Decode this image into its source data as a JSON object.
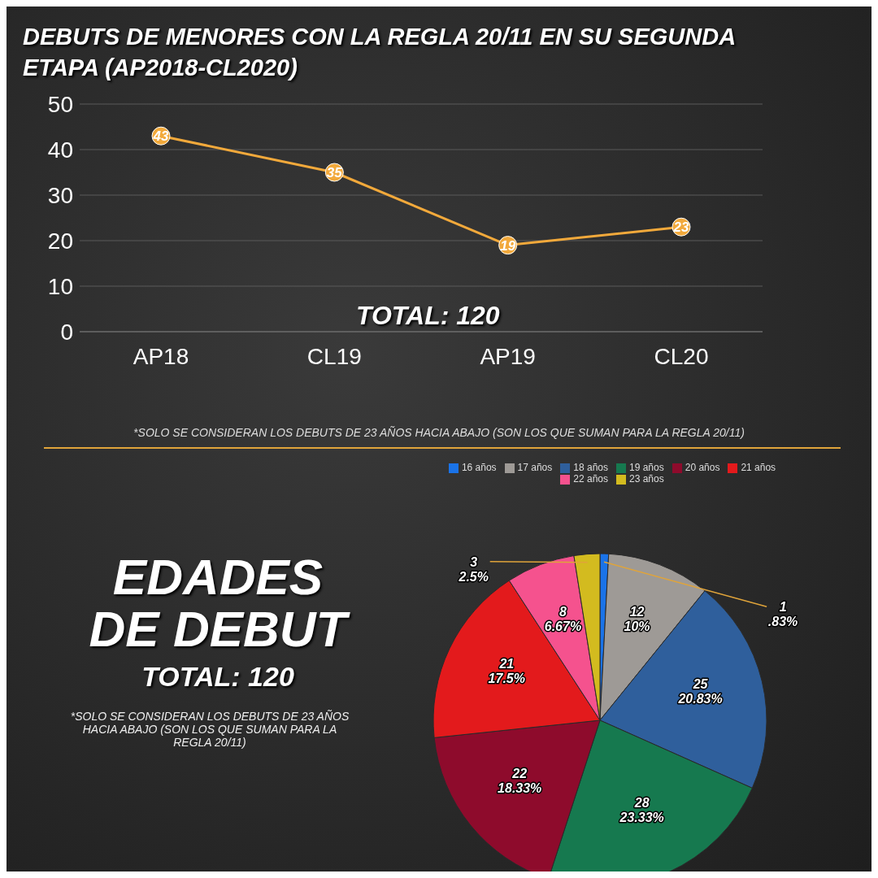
{
  "chart_data": [
    {
      "type": "line",
      "title": "DEBUTS DE MENORES CON LA REGLA 20/11 EN SU SEGUNDA ETAPA (AP2018-CL2020)",
      "categories": [
        "AP18",
        "CL19",
        "AP19",
        "CL20"
      ],
      "values": [
        43,
        35,
        19,
        23
      ],
      "color": "#f2a93b",
      "ylim": [
        0,
        50
      ],
      "yticks": [
        0,
        10,
        20,
        30,
        40,
        50
      ],
      "grid": "y",
      "marker": "circle",
      "data_labels": true,
      "annotations": [
        "TOTAL: 120",
        "*SOLO SE CONSIDERAN LOS DEBUTS DE 23 AÑOS HACIA ABAJO (SON LOS QUE SUMAN PARA LA REGLA 20/11)"
      ]
    },
    {
      "type": "pie",
      "title": "EDADES DE DEBUT",
      "subtitle": "TOTAL: 120",
      "categories": [
        "16 años",
        "17 años",
        "18 años",
        "19 años",
        "20 años",
        "21 años",
        "22 años",
        "23 años"
      ],
      "values": [
        1,
        12,
        25,
        28,
        22,
        21,
        8,
        3
      ],
      "colors": [
        "#1a73e8",
        "#9e9a96",
        "#2f5f9c",
        "#16794f",
        "#8e0b2c",
        "#e31a1c",
        "#f5528e",
        "#d3bb1f"
      ],
      "value_labels": [
        "1\n.83%",
        "12\n10%",
        "25\n20.83%",
        "28\n23.33%",
        "22\n18.33%",
        "21\n17.5%",
        "8\n6.67%",
        "3\n2.5%"
      ],
      "legend": "top",
      "annotations": [
        "*SOLO SE CONSIDERAN LOS DEBUTS DE 23 AÑOS HACIA ABAJO (SON LOS QUE SUMAN PARA LA REGLA 20/11)"
      ]
    }
  ]
}
